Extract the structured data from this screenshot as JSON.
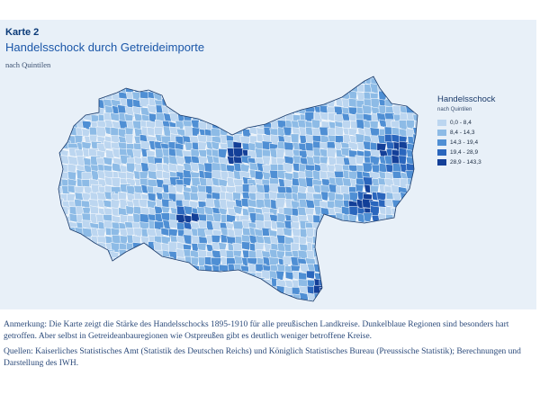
{
  "figure": {
    "label": "Karte 2",
    "title": "Handelsschock durch Getreideimporte",
    "subtitle": "nach Quintilen"
  },
  "legend": {
    "title": "Handelsschock",
    "subtitle": "nach Quintilen",
    "classes": [
      {
        "label": "0,0 - 8,4",
        "color": "#bcd6f0"
      },
      {
        "label": "8,4 - 14,3",
        "color": "#8dbbe6"
      },
      {
        "label": "14,3 - 19,4",
        "color": "#4f8fd4"
      },
      {
        "label": "19,4 - 28,9",
        "color": "#2a66bd"
      },
      {
        "label": "28,9 - 143,3",
        "color": "#133f98"
      }
    ]
  },
  "notes": {
    "anmerkung": "Anmerkung: Die Karte zeigt die Stärke des Handelsschocks 1895-1910 für alle preußischen Landkreise. Dunkelblaue Regionen sind besonders hart getroffen. Aber selbst in Getreideanbauregionen wie Ostpreußen gibt es deutlich weniger betroffene Kreise.",
    "quellen": "Quellen: Kaiserliches Statistisches Amt (Statistik des Deutschen Reichs) und Königlich Statistisches Bureau (Preussische Statistik); Berechnungen und Darstellung des IWH."
  }
}
